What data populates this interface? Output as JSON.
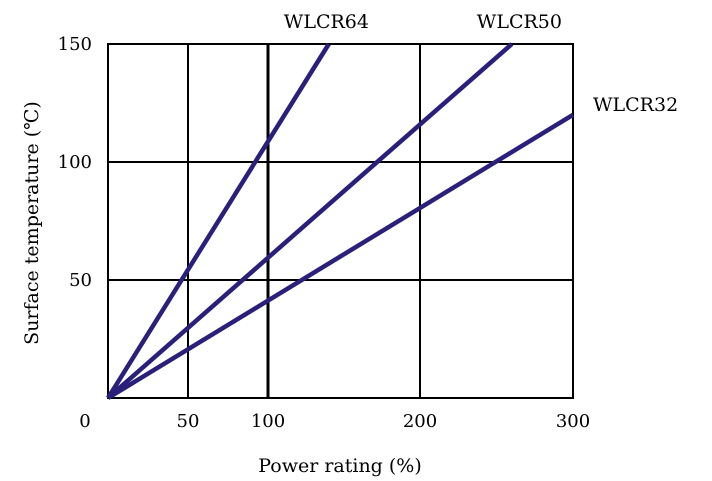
{
  "chart_data": {
    "type": "line",
    "title": "",
    "xlabel": "Power rating (%)",
    "ylabel": "Surface temperature (℃)",
    "origin_label": "0",
    "x_ticks": [
      {
        "value": 50,
        "label": "50"
      },
      {
        "value": 100,
        "label": "100"
      },
      {
        "value": 200,
        "label": "200"
      },
      {
        "value": 300,
        "label": "300"
      }
    ],
    "y_ticks": [
      {
        "value": 50,
        "label": "50"
      },
      {
        "value": 100,
        "label": "100"
      },
      {
        "value": 150,
        "label": "150"
      }
    ],
    "xlim": [
      0,
      300
    ],
    "ylim": [
      0,
      150
    ],
    "grid": true,
    "line_color": "#2a1f7a",
    "series": [
      {
        "name": "WLCR64",
        "x": [
          0,
          140
        ],
        "y": [
          0,
          150
        ]
      },
      {
        "name": "WLCR50",
        "x": [
          0,
          260
        ],
        "y": [
          0,
          150
        ]
      },
      {
        "name": "WLCR32",
        "x": [
          0,
          300
        ],
        "y": [
          0,
          120
        ]
      }
    ]
  }
}
